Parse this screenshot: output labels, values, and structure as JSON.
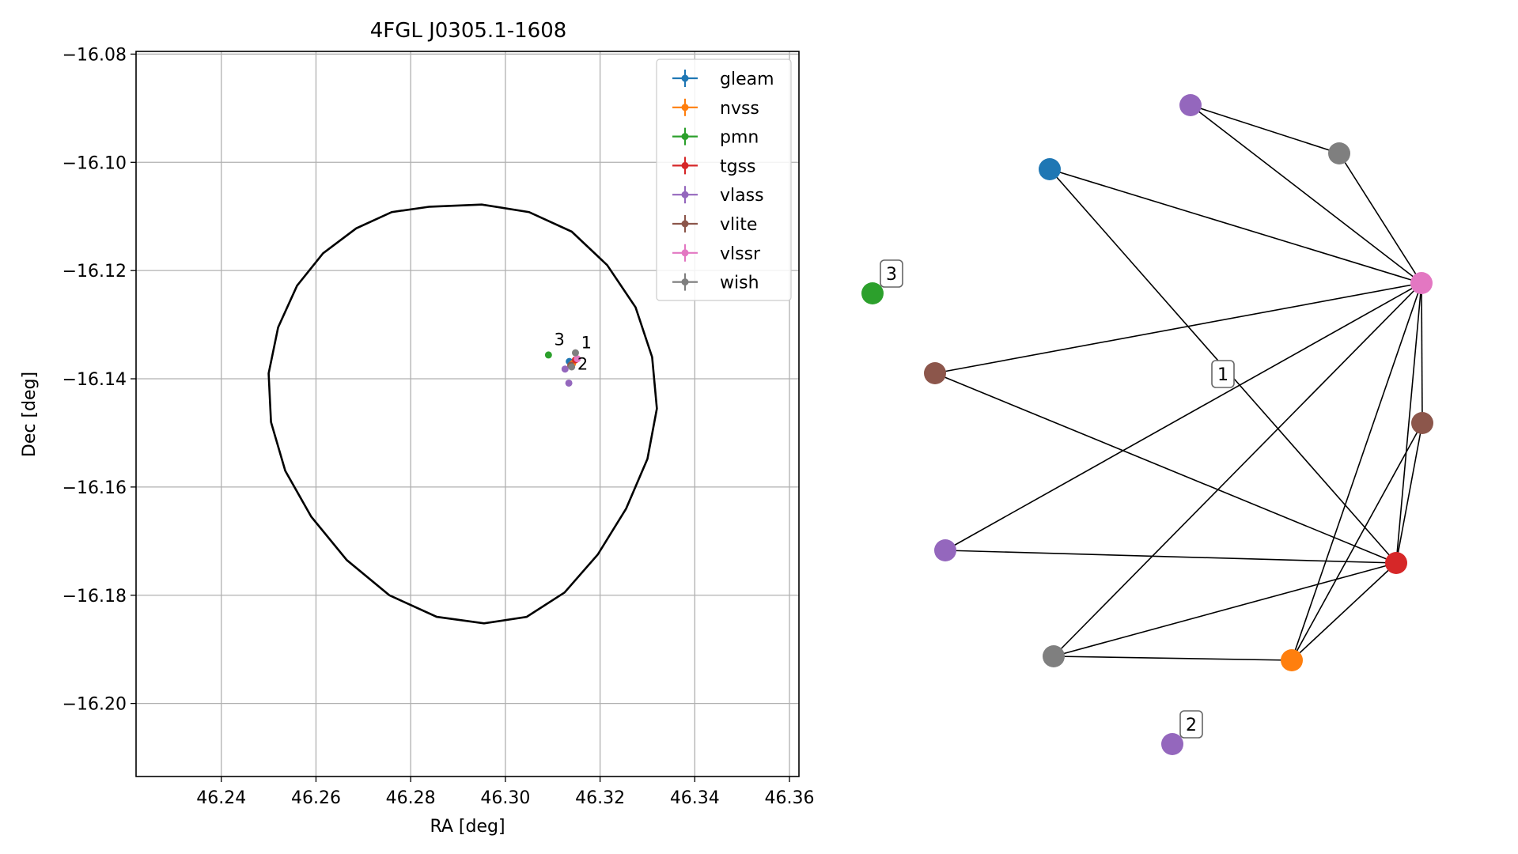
{
  "chart_data": [
    {
      "type": "scatter",
      "title": "4FGL J0305.1-1608",
      "xlabel": "RA [deg]",
      "ylabel": "Dec [deg]",
      "xlim": [
        46.222,
        46.362
      ],
      "ylim": [
        -16.2135,
        -16.0795
      ],
      "xticks": [
        46.24,
        46.26,
        46.28,
        46.3,
        46.32,
        46.34,
        46.36
      ],
      "yticks": [
        -16.08,
        -16.1,
        -16.12,
        -16.14,
        -16.16,
        -16.18,
        -16.2
      ],
      "xtick_labels": [
        "46.24",
        "46.26",
        "46.28",
        "46.30",
        "46.32",
        "46.34",
        "46.36"
      ],
      "ytick_labels": [
        "−16.08",
        "−16.10",
        "−16.12",
        "−16.14",
        "−16.16",
        "−16.18",
        "−16.20"
      ],
      "grid": true,
      "legend_position": "top-right",
      "series": [
        {
          "name": "gleam",
          "color": "#1f77b4",
          "points": [
            [
              46.3135,
              -16.1368
            ]
          ]
        },
        {
          "name": "nvss",
          "color": "#ff7f0e",
          "points": [
            [
              46.3142,
              -16.1372
            ]
          ]
        },
        {
          "name": "pmn",
          "color": "#2ca02c",
          "points": [
            [
              46.3091,
              -16.1356
            ]
          ]
        },
        {
          "name": "tgss",
          "color": "#d62728",
          "points": [
            [
              46.3148,
              -16.1365
            ]
          ]
        },
        {
          "name": "vlass",
          "color": "#9467bd",
          "points": [
            [
              46.3126,
              -16.1382
            ],
            [
              46.3134,
              -16.1408
            ]
          ]
        },
        {
          "name": "vlite",
          "color": "#8c564b",
          "points": [
            [
              46.3138,
              -16.1375
            ]
          ]
        },
        {
          "name": "vlssr",
          "color": "#e377c2",
          "points": [
            [
              46.3152,
              -16.1363
            ]
          ]
        },
        {
          "name": "wish",
          "color": "#7f7f7f",
          "points": [
            [
              46.3148,
              -16.1352
            ],
            [
              46.314,
              -16.1378
            ]
          ]
        }
      ],
      "ellipse": {
        "color": "#000000",
        "center": [
          46.2925,
          -16.1465
        ],
        "points": [
          [
            46.284,
            -16.1082
          ],
          [
            46.276,
            -16.1092
          ],
          [
            46.2685,
            -16.1122
          ],
          [
            46.2615,
            -16.1168
          ],
          [
            46.256,
            -16.1228
          ],
          [
            46.252,
            -16.1305
          ],
          [
            46.25,
            -16.139
          ],
          [
            46.2505,
            -16.148
          ],
          [
            46.2535,
            -16.157
          ],
          [
            46.259,
            -16.1655
          ],
          [
            46.2665,
            -16.1735
          ],
          [
            46.2755,
            -16.18
          ],
          [
            46.2855,
            -16.184
          ],
          [
            46.2955,
            -16.1852
          ],
          [
            46.3045,
            -16.184
          ],
          [
            46.3125,
            -16.1795
          ],
          [
            46.3195,
            -16.1725
          ],
          [
            46.3255,
            -16.164
          ],
          [
            46.33,
            -16.1548
          ],
          [
            46.332,
            -16.1455
          ],
          [
            46.331,
            -16.136
          ],
          [
            46.3275,
            -16.1268
          ],
          [
            46.3215,
            -16.119
          ],
          [
            46.314,
            -16.1128
          ],
          [
            46.305,
            -16.1092
          ],
          [
            46.295,
            -16.1078
          ],
          [
            46.284,
            -16.1082
          ]
        ]
      },
      "annotations": [
        {
          "text": "1",
          "x": 46.316,
          "y": -16.1344
        },
        {
          "text": "2",
          "x": 46.3152,
          "y": -16.1383
        },
        {
          "text": "3",
          "x": 46.3103,
          "y": -16.1338
        }
      ]
    },
    {
      "type": "network",
      "nodes": [
        {
          "id": "wish_a",
          "color": "#7f7f7f"
        },
        {
          "id": "vlass_a",
          "color": "#9467bd"
        },
        {
          "id": "gleam",
          "color": "#1f77b4"
        },
        {
          "id": "vlssr",
          "color": "#e377c2"
        },
        {
          "id": "vlite_a",
          "color": "#8c564b"
        },
        {
          "id": "pmn",
          "color": "#2ca02c"
        },
        {
          "id": "vlite_b",
          "color": "#8c564b"
        },
        {
          "id": "vlass_b",
          "color": "#9467bd"
        },
        {
          "id": "tgss",
          "color": "#d62728"
        },
        {
          "id": "wish_b",
          "color": "#7f7f7f"
        },
        {
          "id": "nvss",
          "color": "#ff7f0e"
        },
        {
          "id": "vlass_c",
          "color": "#9467bd"
        }
      ],
      "edges": [
        [
          "vlass_a",
          "wish_a"
        ],
        [
          "vlass_a",
          "vlssr"
        ],
        [
          "wish_a",
          "vlssr"
        ],
        [
          "gleam",
          "vlssr"
        ],
        [
          "gleam",
          "tgss"
        ],
        [
          "vlite_b",
          "vlssr"
        ],
        [
          "vlite_b",
          "tgss"
        ],
        [
          "vlass_b",
          "vlssr"
        ],
        [
          "vlass_b",
          "tgss"
        ],
        [
          "wish_b",
          "vlssr"
        ],
        [
          "wish_b",
          "tgss"
        ],
        [
          "wish_b",
          "nvss"
        ],
        [
          "nvss",
          "vlssr"
        ],
        [
          "nvss",
          "tgss"
        ],
        [
          "nvss",
          "vlite_a"
        ],
        [
          "tgss",
          "vlssr"
        ],
        [
          "tgss",
          "vlite_a"
        ],
        [
          "vlite_a",
          "vlssr"
        ]
      ],
      "labels": [
        {
          "text": "1",
          "near": "center"
        },
        {
          "text": "2",
          "near": "vlass_c"
        },
        {
          "text": "3",
          "near": "pmn"
        }
      ]
    }
  ]
}
